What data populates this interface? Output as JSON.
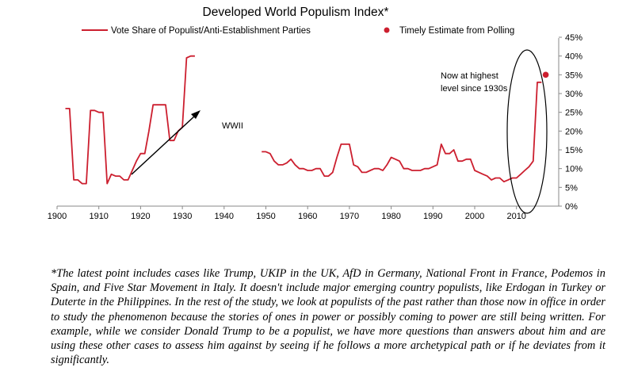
{
  "chart_data": {
    "type": "line",
    "title": "Developed World Populism Index*",
    "xlabel": "",
    "ylabel": "",
    "xlim": [
      1900,
      2020
    ],
    "ylim": [
      0,
      45
    ],
    "x_ticks": [
      1900,
      1910,
      1920,
      1930,
      1940,
      1950,
      1960,
      1970,
      1980,
      1990,
      2000,
      2010
    ],
    "x_tick_labels": [
      "1900",
      "1910",
      "1920",
      "1930",
      "1940",
      "1950",
      "1960",
      "1970",
      "1980",
      "1990",
      "2000",
      "2010"
    ],
    "y_ticks": [
      0,
      5,
      10,
      15,
      20,
      25,
      30,
      35,
      40,
      45
    ],
    "y_tick_labels": [
      "0%",
      "5%",
      "10%",
      "15%",
      "20%",
      "25%",
      "30%",
      "35%",
      "40%",
      "45%"
    ],
    "y_axis_side": "right",
    "grid": false,
    "legend_position": "top",
    "series": [
      {
        "name": "Vote Share of Populist/Anti-Establishment Parties",
        "color": "#cc1f2f",
        "segments": [
          {
            "x": [
              1902,
              1903,
              1904,
              1905,
              1906,
              1907,
              1908,
              1909,
              1910,
              1911,
              1912,
              1913,
              1914,
              1915,
              1916,
              1917,
              1918,
              1919,
              1920,
              1921,
              1922,
              1923,
              1924,
              1925,
              1926,
              1927,
              1928,
              1929,
              1930,
              1931,
              1932,
              1933
            ],
            "y": [
              26,
              26,
              7,
              7,
              6,
              6,
              25.5,
              25.5,
              25,
              25,
              6,
              8.5,
              8,
              8,
              7,
              7,
              9.5,
              12,
              14,
              14,
              20,
              27,
              27,
              27,
              27,
              17.5,
              17.5,
              20,
              21,
              39.5,
              40,
              40
            ]
          },
          {
            "x": [
              1949,
              1950,
              1951,
              1952,
              1953,
              1954,
              1955,
              1956,
              1957,
              1958,
              1959,
              1960,
              1961,
              1962,
              1963,
              1964,
              1965,
              1966,
              1967,
              1968,
              1969,
              1970,
              1971,
              1972,
              1973,
              1974,
              1975,
              1976,
              1977,
              1978,
              1979,
              1980,
              1981,
              1982,
              1983,
              1984,
              1985,
              1986,
              1987,
              1988,
              1989,
              1990,
              1991,
              1992,
              1993,
              1994,
              1995,
              1996,
              1997,
              1998,
              1999,
              2000,
              2001,
              2002,
              2003,
              2004,
              2005,
              2006,
              2007,
              2008,
              2009,
              2010,
              2011,
              2012,
              2013,
              2014,
              2015,
              2016
            ],
            "y": [
              14.5,
              14.5,
              14,
              12,
              11,
              11,
              11.5,
              12.5,
              11,
              10,
              10,
              9.5,
              9.5,
              10,
              10,
              8,
              8,
              9,
              13,
              16.5,
              16.5,
              16.5,
              11,
              10.5,
              9,
              9,
              9.5,
              10,
              10,
              9.5,
              11,
              13,
              12.5,
              12,
              10,
              10,
              9.5,
              9.5,
              9.5,
              10,
              10,
              10.5,
              11,
              16.5,
              14,
              14,
              15,
              12,
              12,
              12.5,
              12.5,
              9.5,
              9,
              8.5,
              8,
              7,
              7.5,
              7.5,
              6.5,
              7,
              7.5,
              7.5,
              8.5,
              9.5,
              10.5,
              12,
              33,
              33
            ]
          }
        ]
      },
      {
        "name": "Timely Estimate from Polling",
        "type": "scatter",
        "color": "#cc1f2f",
        "x": [
          2017
        ],
        "y": [
          35
        ]
      }
    ],
    "annotations": [
      {
        "text": "WWII"
      },
      {
        "text": "Now at highest level since 1930s"
      }
    ]
  },
  "annotation_lines": [
    "Now at highest",
    "level since 1930s"
  ],
  "footnote": "*The latest point includes cases like Trump, UKIP in the UK, AfD in Germany, National Front in France, Podemos in Spain, and Five Star Movement in Italy. It doesn't include major emerging country populists, like Erdogan in Turkey or Duterte in the Philippines. In the rest of the study, we look at populists of the past rather than those now in office in order to study the phenomenon because the stories of ones in power or possibly coming to power are still being written.  For example, while we consider Donald Trump to be a populist, we have more questions than answers about him and are using these other cases to assess him against by seeing if he follows a more archetypical path or if he deviates from it significantly."
}
